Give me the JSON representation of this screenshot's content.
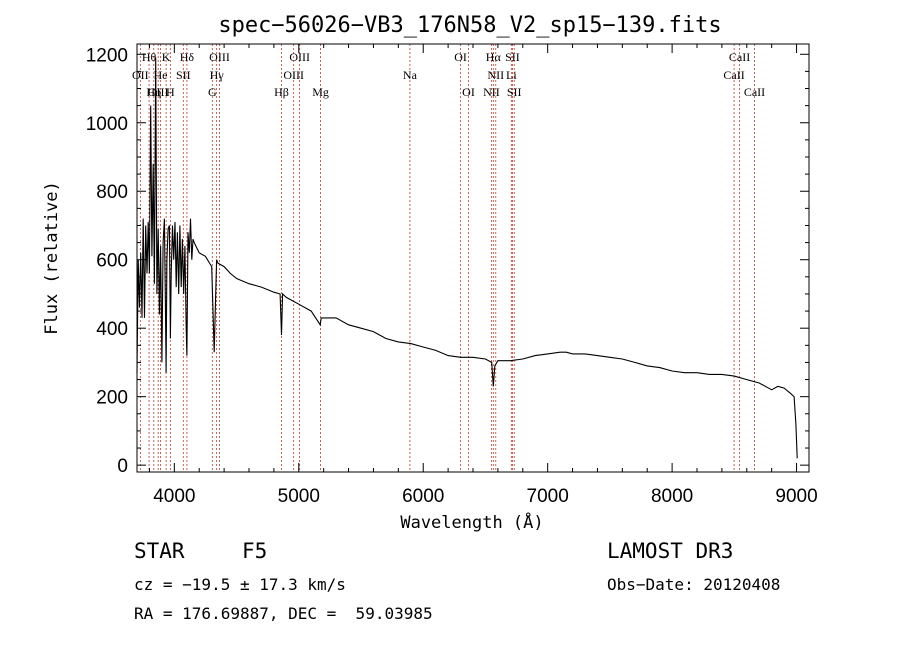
{
  "chart_data": {
    "type": "line",
    "title": "spec−56026−VB3_176N58_V2_sp15−139.fits",
    "xlabel": "Wavelength (Å)",
    "ylabel": "Flux (relative)",
    "xlim": [
      3700,
      9100
    ],
    "ylim": [
      -20,
      1230
    ],
    "x_ticks": [
      4000,
      5000,
      6000,
      7000,
      8000,
      9000
    ],
    "y_ticks": [
      0,
      200,
      400,
      600,
      800,
      1000,
      1200
    ],
    "x_tick_labels": [
      "4000",
      "5000",
      "6000",
      "7000",
      "8000",
      "9000"
    ],
    "y_tick_labels": [
      "0",
      "200",
      "400",
      "600",
      "800",
      "1000",
      "1200"
    ],
    "series": [
      {
        "name": "spectrum",
        "x": [
          3700,
          3710,
          3720,
          3730,
          3740,
          3750,
          3760,
          3770,
          3780,
          3790,
          3800,
          3810,
          3820,
          3830,
          3840,
          3850,
          3860,
          3870,
          3880,
          3890,
          3900,
          3910,
          3920,
          3930,
          3934,
          3940,
          3950,
          3960,
          3968,
          3975,
          3985,
          3995,
          4005,
          4015,
          4025,
          4035,
          4045,
          4055,
          4065,
          4075,
          4085,
          4095,
          4101,
          4110,
          4120,
          4130,
          4140,
          4150,
          4160,
          4200,
          4250,
          4300,
          4320,
          4340,
          4350,
          4400,
          4450,
          4500,
          4600,
          4700,
          4800,
          4850,
          4861,
          4870,
          4900,
          5000,
          5100,
          5172,
          5180,
          5300,
          5400,
          5500,
          5600,
          5700,
          5800,
          5900,
          6000,
          6100,
          6200,
          6300,
          6400,
          6500,
          6550,
          6563,
          6575,
          6600,
          6700,
          6800,
          6900,
          7000,
          7100,
          7150,
          7200,
          7300,
          7400,
          7500,
          7600,
          7700,
          7800,
          7900,
          8000,
          8100,
          8200,
          8300,
          8400,
          8500,
          8600,
          8700,
          8800,
          8850,
          8900,
          8950,
          8980,
          8995,
          9005
        ],
        "values": [
          270,
          600,
          460,
          620,
          430,
          720,
          430,
          700,
          560,
          710,
          560,
          1050,
          610,
          880,
          530,
          1190,
          500,
          690,
          440,
          640,
          300,
          650,
          720,
          420,
          270,
          600,
          690,
          700,
          370,
          560,
          700,
          600,
          710,
          520,
          680,
          500,
          700,
          520,
          660,
          500,
          640,
          400,
          320,
          680,
          620,
          720,
          600,
          660,
          650,
          620,
          610,
          580,
          330,
          600,
          590,
          580,
          560,
          545,
          530,
          520,
          505,
          500,
          380,
          500,
          490,
          470,
          450,
          410,
          430,
          430,
          410,
          400,
          390,
          370,
          360,
          355,
          345,
          335,
          320,
          315,
          315,
          310,
          300,
          230,
          290,
          305,
          305,
          310,
          320,
          325,
          330,
          330,
          325,
          325,
          320,
          315,
          310,
          300,
          290,
          285,
          275,
          270,
          270,
          265,
          265,
          260,
          250,
          240,
          220,
          230,
          225,
          210,
          200,
          120,
          20
        ]
      }
    ],
    "lines": [
      {
        "label": "Hθ",
        "wave": 3797
      },
      {
        "label": "K",
        "wave": 3934
      },
      {
        "label": "Hδ",
        "wave": 4101
      },
      {
        "label": "OIII",
        "wave": 4363
      },
      {
        "label": "OIII",
        "wave": 5007
      },
      {
        "label": "OI",
        "wave": 6300
      },
      {
        "label": "Hα",
        "wave": 6563
      },
      {
        "label": "SII",
        "wave": 6717
      },
      {
        "label": "CaII",
        "wave": 8542
      },
      {
        "label": "OII",
        "wave": 3727
      },
      {
        "label": "He",
        "wave": 3889
      },
      {
        "label": "SII",
        "wave": 4072
      },
      {
        "label": "Hγ",
        "wave": 4340
      },
      {
        "label": "OIII",
        "wave": 4959
      },
      {
        "label": "Na",
        "wave": 5893
      },
      {
        "label": "NII",
        "wave": 6583
      },
      {
        "label": "Li",
        "wave": 6708
      },
      {
        "label": "CaII",
        "wave": 8498
      },
      {
        "label": "OIII",
        "wave": 3870
      },
      {
        "label": "Hη",
        "wave": 3835
      },
      {
        "label": "H",
        "wave": 3968
      },
      {
        "label": "G",
        "wave": 4305
      },
      {
        "label": "Hβ",
        "wave": 4861
      },
      {
        "label": "Mg",
        "wave": 5175
      },
      {
        "label": "OI",
        "wave": 6364
      },
      {
        "label": "NII",
        "wave": 6548
      },
      {
        "label": "SII",
        "wave": 6731
      },
      {
        "label": "CaII",
        "wave": 8662
      }
    ]
  },
  "info": {
    "class_label": "STAR",
    "subclass": "F5",
    "survey": "LAMOST DR3",
    "cz": "cz = −19.5 ± 17.3 km/s",
    "obs_date": "Obs−Date: 20120408",
    "coords": "RA = 176.69887, DEC =  59.03985"
  },
  "colors": {
    "line_marker": "#c0392b",
    "spectrum": "#000000"
  }
}
